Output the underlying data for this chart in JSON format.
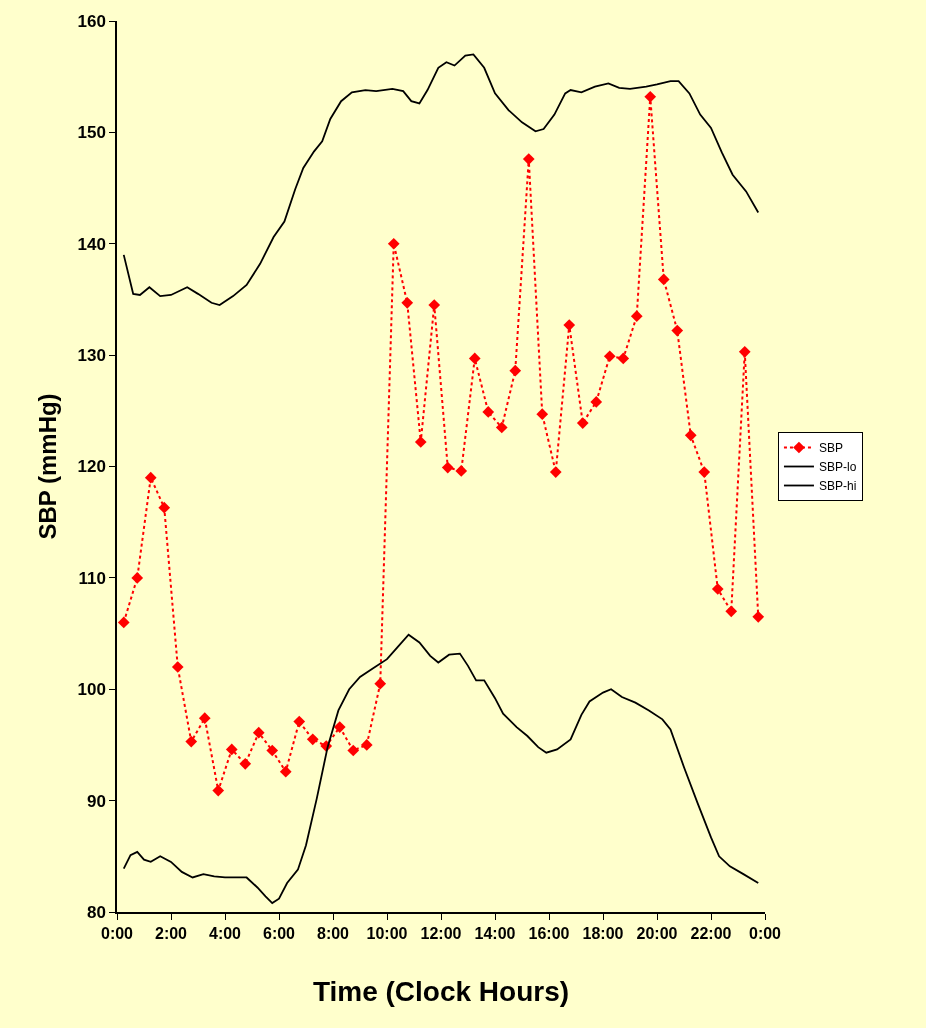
{
  "chart_data": {
    "type": "line",
    "xlabel": "Time (Clock Hours)",
    "ylabel": "SBP (mmHg)",
    "xlim": [
      0,
      24
    ],
    "xticks": [
      {
        "value": 0,
        "label": "0:00"
      },
      {
        "value": 2,
        "label": "2:00"
      },
      {
        "value": 4,
        "label": "4:00"
      },
      {
        "value": 6,
        "label": "6:00"
      },
      {
        "value": 8,
        "label": "8:00"
      },
      {
        "value": 10,
        "label": "10:00"
      },
      {
        "value": 12,
        "label": "12:00"
      },
      {
        "value": 14,
        "label": "14:00"
      },
      {
        "value": 16,
        "label": "16:00"
      },
      {
        "value": 18,
        "label": "18:00"
      },
      {
        "value": 20,
        "label": "20:00"
      },
      {
        "value": 22,
        "label": "22:00"
      },
      {
        "value": 24,
        "label": "0:00"
      }
    ],
    "ylim": [
      80,
      160
    ],
    "yticks": [
      80,
      90,
      100,
      110,
      120,
      130,
      140,
      150,
      160
    ],
    "grid": false,
    "legend": "right",
    "series": [
      {
        "name": "SBP",
        "color": "#ff0000",
        "marker": "diamond",
        "line_style": "dotted",
        "x": [
          0.25,
          0.75,
          1.25,
          1.75,
          2.25,
          2.75,
          3.25,
          3.75,
          4.25,
          4.75,
          5.25,
          5.75,
          6.25,
          6.75,
          7.25,
          7.75,
          8.25,
          8.75,
          9.25,
          9.75,
          10.25,
          10.75,
          11.25,
          11.75,
          12.25,
          12.75,
          13.25,
          13.75,
          14.25,
          14.75,
          15.25,
          15.75,
          16.25,
          16.75,
          17.25,
          17.75,
          18.25,
          18.75,
          19.25,
          19.75,
          20.25,
          20.75,
          21.25,
          21.75,
          22.25,
          22.75,
          23.25,
          23.75
        ],
        "values": [
          106.0,
          110.0,
          119.0,
          116.3,
          102.0,
          95.3,
          97.4,
          90.9,
          94.6,
          93.3,
          96.1,
          94.5,
          92.6,
          97.1,
          95.5,
          94.9,
          96.6,
          94.5,
          95.0,
          100.5,
          140.0,
          134.7,
          122.2,
          134.5,
          119.9,
          119.6,
          129.7,
          124.9,
          123.5,
          128.6,
          147.6,
          124.7,
          119.5,
          132.7,
          123.9,
          125.8,
          129.9,
          129.7,
          133.5,
          153.2,
          136.8,
          132.2,
          122.8,
          119.5,
          109.0,
          107.0,
          130.3,
          106.5
        ]
      },
      {
        "name": "SBP-lo",
        "color": "#000000",
        "marker": "none",
        "line_style": "solid",
        "x": [
          0.25,
          0.5,
          0.75,
          1.0,
          1.25,
          1.6,
          2.0,
          2.4,
          2.8,
          3.2,
          3.6,
          4.0,
          4.5,
          4.8,
          5.2,
          5.5,
          5.75,
          6.0,
          6.3,
          6.7,
          7.0,
          7.4,
          7.8,
          8.2,
          8.6,
          9.0,
          9.5,
          10.0,
          10.4,
          10.8,
          11.2,
          11.6,
          11.9,
          12.3,
          12.7,
          13.0,
          13.3,
          13.6,
          14.0,
          14.3,
          14.8,
          15.2,
          15.6,
          15.9,
          16.3,
          16.8,
          17.2,
          17.5,
          18.0,
          18.3,
          18.7,
          19.2,
          19.7,
          20.2,
          20.5,
          21.0,
          21.5,
          22.0,
          22.3,
          22.7,
          23.2,
          23.75
        ],
        "values": [
          83.9,
          85.1,
          85.4,
          84.7,
          84.5,
          85.0,
          84.5,
          83.6,
          83.1,
          83.4,
          83.2,
          83.1,
          83.1,
          83.1,
          82.2,
          81.4,
          80.8,
          81.2,
          82.6,
          83.8,
          86.0,
          90.2,
          94.8,
          98.1,
          100.0,
          101.1,
          101.9,
          102.7,
          103.8,
          104.9,
          104.2,
          103.0,
          102.4,
          103.1,
          103.2,
          102.1,
          100.8,
          100.8,
          99.2,
          97.8,
          96.6,
          95.8,
          94.8,
          94.3,
          94.6,
          95.5,
          97.7,
          98.9,
          99.7,
          100.0,
          99.3,
          98.8,
          98.1,
          97.3,
          96.4,
          93.0,
          89.8,
          86.7,
          85.0,
          84.1,
          83.4,
          82.6
        ]
      },
      {
        "name": "SBP-hi",
        "color": "#000000",
        "marker": "none",
        "line_style": "solid",
        "x": [
          0.25,
          0.6,
          0.85,
          1.2,
          1.6,
          2.0,
          2.6,
          3.0,
          3.5,
          3.8,
          4.3,
          4.8,
          5.3,
          5.8,
          6.2,
          6.6,
          6.9,
          7.3,
          7.6,
          7.9,
          8.3,
          8.7,
          9.2,
          9.6,
          10.2,
          10.6,
          10.9,
          11.2,
          11.5,
          11.9,
          12.2,
          12.5,
          12.9,
          13.2,
          13.6,
          14.0,
          14.5,
          15.0,
          15.5,
          15.8,
          16.2,
          16.6,
          16.8,
          17.2,
          17.7,
          18.2,
          18.6,
          19.0,
          19.6,
          20.0,
          20.5,
          20.8,
          21.2,
          21.6,
          22.0,
          22.4,
          22.8,
          23.3,
          23.75
        ],
        "values": [
          139.0,
          135.5,
          135.4,
          136.1,
          135.3,
          135.4,
          136.1,
          135.5,
          134.7,
          134.5,
          135.3,
          136.3,
          138.2,
          140.6,
          142.0,
          144.9,
          146.8,
          148.3,
          149.2,
          151.2,
          152.8,
          153.6,
          153.8,
          153.7,
          153.9,
          153.7,
          152.8,
          152.6,
          153.8,
          155.8,
          156.3,
          156.0,
          156.9,
          157.0,
          155.8,
          153.5,
          152.0,
          150.9,
          150.1,
          150.3,
          151.6,
          153.5,
          153.8,
          153.6,
          154.1,
          154.4,
          154.0,
          153.9,
          154.1,
          154.3,
          154.6,
          154.6,
          153.5,
          151.6,
          150.4,
          148.2,
          146.2,
          144.7,
          142.8
        ]
      }
    ]
  }
}
